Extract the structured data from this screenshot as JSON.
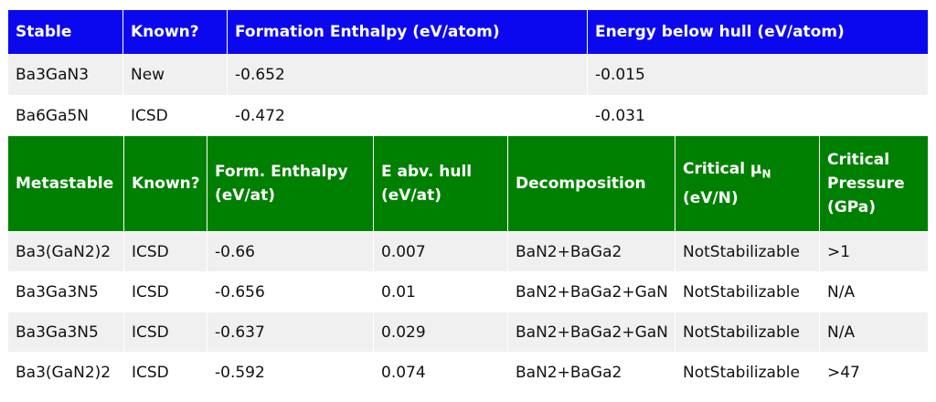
{
  "stable": {
    "headers": [
      "Stable",
      "Known?",
      "Formation Enthalpy (eV/atom)",
      "Energy below hull (eV/atom)"
    ],
    "rows": [
      [
        "Ba3GaN3",
        "New",
        "-0.652",
        "-0.015"
      ],
      [
        "Ba6Ga5N",
        "ICSD",
        "-0.472",
        "-0.031"
      ]
    ]
  },
  "metastable": {
    "headers": {
      "c0": "Metastable",
      "c1": "Known?",
      "c2a": "Form. Enthalpy",
      "c2b": "(eV/at)",
      "c3a": "E abv. hull",
      "c3b": "(eV/at)",
      "c4": "Decomposition",
      "c5a": "Critical μ",
      "c5sub": "N",
      "c5b": "(eV/N)",
      "c6a": "Critical",
      "c6b": "Pressure",
      "c6c": "(GPa)"
    },
    "rows": [
      [
        "Ba3(GaN2)2",
        "ICSD",
        "-0.66",
        "0.007",
        "BaN2+BaGa2",
        "NotStabilizable",
        ">1"
      ],
      [
        "Ba3Ga3N5",
        "ICSD",
        "-0.656",
        "0.01",
        "BaN2+BaGa2+GaN",
        "NotStabilizable",
        "N/A"
      ],
      [
        "Ba3Ga3N5",
        "ICSD",
        "-0.637",
        "0.029",
        "BaN2+BaGa2+GaN",
        "NotStabilizable",
        "N/A"
      ],
      [
        "Ba3(GaN2)2",
        "ICSD",
        "-0.592",
        "0.074",
        "BaN2+BaGa2",
        "NotStabilizable",
        ">47"
      ]
    ]
  },
  "colors": {
    "stable_header": "#0b08f0",
    "metastable_header": "#008000",
    "new_text": "#ff00ff",
    "pressure_text": "#b22222"
  }
}
